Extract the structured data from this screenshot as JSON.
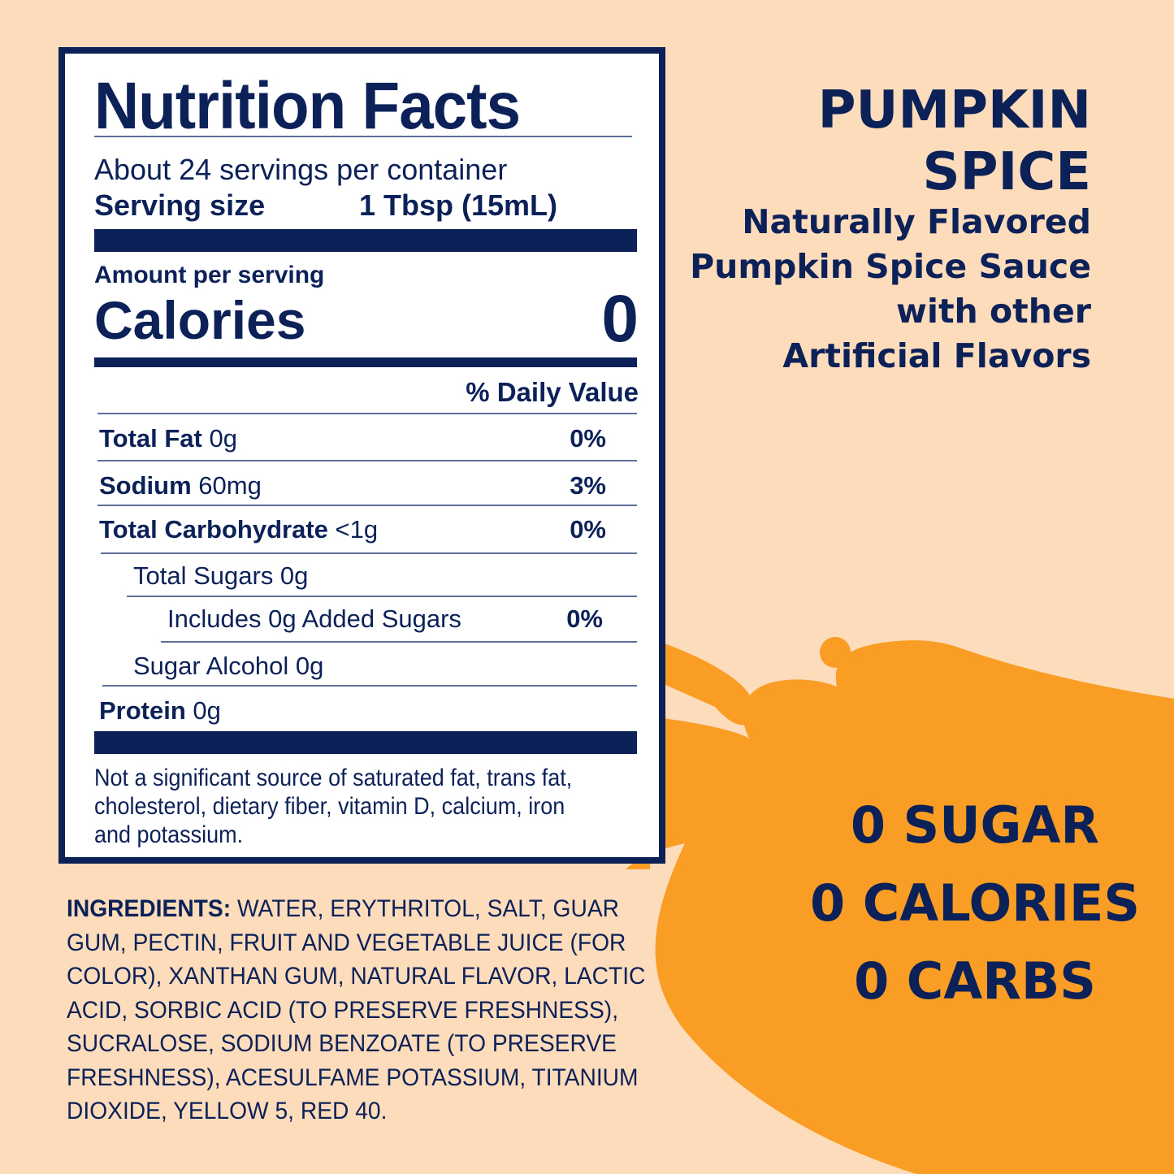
{
  "colors": {
    "background": "#fddcbb",
    "splash": "#f99d25",
    "navy": "#0b2158"
  },
  "label": {
    "title": "Nutrition Facts",
    "servings": "About 24 servings per container",
    "serving_size_label": "Serving size",
    "serving_size_value": "1 Tbsp (15mL)",
    "amount_per_serving": "Amount per serving",
    "calories_label": "Calories",
    "calories_value": "0",
    "daily_value_header": "% Daily Value",
    "rows": [
      {
        "name": "Total Fat",
        "amount": "0g",
        "dv": "0%"
      },
      {
        "name": "Sodium",
        "amount": "60mg",
        "dv": "3%"
      },
      {
        "name": "Total Carbohydrate",
        "amount": "<1g",
        "dv": "0%"
      },
      {
        "name": "",
        "amount": "Total Sugars 0g",
        "dv": ""
      },
      {
        "name": "",
        "amount": "Includes 0g Added Sugars",
        "dv": "0%"
      },
      {
        "name": "",
        "amount": "Sugar Alcohol 0g",
        "dv": ""
      },
      {
        "name": "Protein",
        "amount": "0g",
        "dv": ""
      }
    ],
    "footnote": "Not a significant source of saturated fat, trans fat, cholesterol, dietary fiber, vitamin D, calcium, iron and potassium."
  },
  "ingredients": {
    "label": "INGREDIENTS:",
    "text": " WATER, ERYTHRITOL, SALT, GUAR GUM, PECTIN, FRUIT AND VEGETABLE JUICE (FOR COLOR), XANTHAN GUM, NATURAL FLAVOR, LACTIC ACID, SORBIC ACID (TO PRESERVE FRESHNESS), SUCRALOSE, SODIUM BENZOATE (TO PRESERVE FRESHNESS), ACESULFAME POTASSIUM, TITANIUM DIOXIDE, YELLOW 5, RED 40."
  },
  "product": {
    "name_line1": "PUMPKIN",
    "name_line2": "SPICE",
    "desc": [
      "Naturally Flavored",
      "Pumpkin Spice Sauce",
      "with other",
      "Artificial Flavors"
    ]
  },
  "claims": [
    "0 SUGAR",
    "0 CALORIES",
    "0 CARBS"
  ]
}
